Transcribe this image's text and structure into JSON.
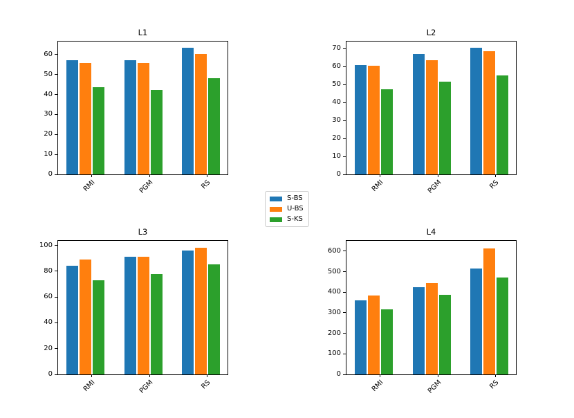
{
  "legend": {
    "items": [
      {
        "label": "S-BS",
        "color": "#1f77b4"
      },
      {
        "label": "U-BS",
        "color": "#ff7f0e"
      },
      {
        "label": "S-KS",
        "color": "#2ca02c"
      }
    ]
  },
  "colors": {
    "blue": "#1f77b4",
    "orange": "#ff7f0e",
    "green": "#2ca02c",
    "spine": "#000000",
    "legend_border": "#cccccc",
    "background": "#ffffff"
  },
  "chart_data": [
    {
      "type": "bar",
      "title": "L1",
      "categories": [
        "RMI",
        "PGM",
        "RS"
      ],
      "series": [
        {
          "name": "S-BS",
          "color": "#1f77b4",
          "values": [
            57.1,
            57.3,
            63.3
          ]
        },
        {
          "name": "U-BS",
          "color": "#ff7f0e",
          "values": [
            55.6,
            55.8,
            60.4
          ]
        },
        {
          "name": "S-KS",
          "color": "#2ca02c",
          "values": [
            43.5,
            42.2,
            48.0
          ]
        }
      ],
      "ylim": [
        0,
        66.5
      ],
      "yticks": [
        0,
        10,
        20,
        30,
        40,
        50,
        60
      ],
      "grid": false,
      "legend_position": "figure-center"
    },
    {
      "type": "bar",
      "title": "L2",
      "categories": [
        "RMI",
        "PGM",
        "RS"
      ],
      "series": [
        {
          "name": "S-BS",
          "color": "#1f77b4",
          "values": [
            61.0,
            67.2,
            70.4
          ]
        },
        {
          "name": "U-BS",
          "color": "#ff7f0e",
          "values": [
            60.4,
            63.6,
            68.5
          ]
        },
        {
          "name": "S-KS",
          "color": "#2ca02c",
          "values": [
            47.3,
            51.8,
            55.2
          ]
        }
      ],
      "ylim": [
        0,
        74
      ],
      "yticks": [
        0,
        10,
        20,
        30,
        40,
        50,
        60,
        70
      ],
      "grid": false,
      "legend_position": "figure-center"
    },
    {
      "type": "bar",
      "title": "L3",
      "categories": [
        "RMI",
        "PGM",
        "RS"
      ],
      "series": [
        {
          "name": "S-BS",
          "color": "#1f77b4",
          "values": [
            84.3,
            91.3,
            96.0
          ]
        },
        {
          "name": "U-BS",
          "color": "#ff7f0e",
          "values": [
            89.2,
            91.2,
            98.0
          ]
        },
        {
          "name": "S-KS",
          "color": "#2ca02c",
          "values": [
            72.8,
            77.5,
            85.3
          ]
        }
      ],
      "ylim": [
        0,
        103.5
      ],
      "yticks": [
        0,
        20,
        40,
        60,
        80,
        100
      ],
      "grid": false,
      "legend_position": "figure-center"
    },
    {
      "type": "bar",
      "title": "L4",
      "categories": [
        "RMI",
        "PGM",
        "RS"
      ],
      "series": [
        {
          "name": "S-BS",
          "color": "#1f77b4",
          "values": [
            362,
            423,
            514
          ]
        },
        {
          "name": "U-BS",
          "color": "#ff7f0e",
          "values": [
            385,
            445,
            612
          ]
        },
        {
          "name": "S-KS",
          "color": "#2ca02c",
          "values": [
            317,
            386,
            471
          ]
        }
      ],
      "ylim": [
        0,
        650
      ],
      "yticks": [
        0,
        100,
        200,
        300,
        400,
        500,
        600
      ],
      "grid": false,
      "legend_position": "figure-center"
    }
  ]
}
